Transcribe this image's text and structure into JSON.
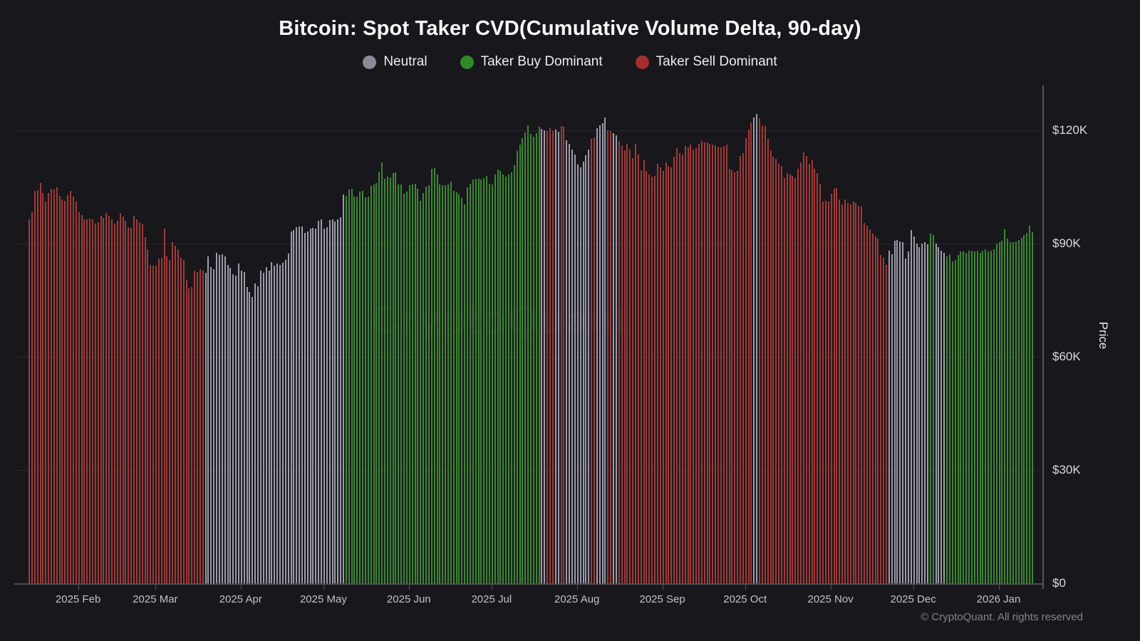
{
  "watermark": "CryptoQuant",
  "copyright": "© CryptoQuant. All rights reserved",
  "legend": [
    {
      "label": "Neutral",
      "code": "n",
      "dot_color": "#8c8c97"
    },
    {
      "label": "Taker Buy Dominant",
      "code": "g",
      "dot_color": "#2f8a28"
    },
    {
      "label": "Taker Sell Dominant",
      "code": "r",
      "dot_color": "#a62d2f"
    }
  ],
  "colors": {
    "background": "#17171c",
    "bar_red": "#a33a35",
    "bar_green": "#3a8a2e",
    "bar_neutral": "#9d9cab",
    "grid": "rgba(255,255,255,0.07)",
    "axis_line": "#55555c",
    "y_label_text": "#dcdcdf",
    "x_label_text": "#c2c2c8"
  },
  "chart_data": {
    "type": "bar",
    "title": "Bitcoin: Spot Taker CVD(Cumulative Volume Delta, 90-day)",
    "ylabel": "Price",
    "legend_position": "top",
    "grid": true,
    "ylim_usd_k": [
      0,
      131
    ],
    "y_axis": [
      {
        "label": "$120K",
        "value": 120
      },
      {
        "label": "$90K",
        "value": 90
      },
      {
        "label": "$60K",
        "value": 60
      },
      {
        "label": "$30K",
        "value": 30
      },
      {
        "label": "$0",
        "value": 0
      }
    ],
    "x_ticks": [
      {
        "label": "2025 Feb",
        "index": 18
      },
      {
        "label": "2025 Mar",
        "index": 46
      },
      {
        "label": "2025 Apr",
        "index": 77
      },
      {
        "label": "2025 May",
        "index": 107
      },
      {
        "label": "2025 Jun",
        "index": 138
      },
      {
        "label": "2025 Jul",
        "index": 168
      },
      {
        "label": "2025 Aug",
        "index": 199
      },
      {
        "label": "2025 Sep",
        "index": 230
      },
      {
        "label": "2025 Oct",
        "index": 260
      },
      {
        "label": "2025 Nov",
        "index": 291
      },
      {
        "label": "2025 Dec",
        "index": 321
      },
      {
        "label": "2026 Jan",
        "index": 352
      }
    ],
    "code_legend": {
      "r": "Taker Sell Dominant",
      "n": "Neutral",
      "g": "Taker Buy Dominant"
    },
    "series": {
      "name": "BTC daily price colored by spot taker CVD dominance",
      "prices_usd_k": [
        96.4,
        98.3,
        104.0,
        104.2,
        106.0,
        103.5,
        101.1,
        103.5,
        104.5,
        104.3,
        104.9,
        102.6,
        101.8,
        101.3,
        102.9,
        104.0,
        102.5,
        101.1,
        98.3,
        97.5,
        96.4,
        96.4,
        96.6,
        96.4,
        95.3,
        95.7,
        97.3,
        96.8,
        98.1,
        97.4,
        96.4,
        95.3,
        96.0,
        98.1,
        97.2,
        96.0,
        94.4,
        94.2,
        97.3,
        96.4,
        95.7,
        95.1,
        91.7,
        88.5,
        84.3,
        84.2,
        84.2,
        86.0,
        86.2,
        94.0,
        86.6,
        85.7,
        90.4,
        89.4,
        88.5,
        86.2,
        85.7,
        80.4,
        78.1,
        78.5,
        82.9,
        82.4,
        83.3,
        82.8,
        82.2,
        86.6,
        83.8,
        83.3,
        87.5,
        86.9,
        87.2,
        86.6,
        84.3,
        83.5,
        81.9,
        81.5,
        84.7,
        82.8,
        82.4,
        78.5,
        77.2,
        75.9,
        79.4,
        78.7,
        82.8,
        82.2,
        83.8,
        82.8,
        85.1,
        84.2,
        84.7,
        84.3,
        84.9,
        85.6,
        87.4,
        93.3,
        93.5,
        94.4,
        94.6,
        94.5,
        92.9,
        93.2,
        93.9,
        94.2,
        94.0,
        96.1,
        96.5,
        94.0,
        94.4,
        96.2,
        96.5,
        95.8,
        96.4,
        97.0,
        103.0,
        102.7,
        104.3,
        104.5,
        102.5,
        102.4,
        103.8,
        103.9,
        102.3,
        102.4,
        105.2,
        105.7,
        106.0,
        109.1,
        111.5,
        107.2,
        107.8,
        107.5,
        108.6,
        108.8,
        105.6,
        105.7,
        103.3,
        103.8,
        105.4,
        105.6,
        105.8,
        104.5,
        101.4,
        103.5,
        105.1,
        105.5,
        109.8,
        110.0,
        108.3,
        105.6,
        105.5,
        105.4,
        105.6,
        106.4,
        103.9,
        103.6,
        103.0,
        102.1,
        100.4,
        105.0,
        105.8,
        107.0,
        107.2,
        107.1,
        107.0,
        107.4,
        108.0,
        105.9,
        105.6,
        108.3,
        109.6,
        109.3,
        108.3,
        107.7,
        108.4,
        108.8,
        110.8,
        114.5,
        116.2,
        118.0,
        119.5,
        121.3,
        119.0,
        118.4,
        119.3,
        120.9,
        120.3,
        120.0,
        119.9,
        120.5,
        119.8,
        120.2,
        119.6,
        121.2,
        120.9,
        117.3,
        116.4,
        114.9,
        113.6,
        110.9,
        110.2,
        111.8,
        113.4,
        114.9,
        117.8,
        118.1,
        120.6,
        121.4,
        121.9,
        123.4,
        120.1,
        119.8,
        119.2,
        118.7,
        117.2,
        116.1,
        114.8,
        116.5,
        114.9,
        112.7,
        116.5,
        113.6,
        109.5,
        112.1,
        109.2,
        108.3,
        107.7,
        108.0,
        111.1,
        110.2,
        109.2,
        111.5,
        110.5,
        110.2,
        113.0,
        115.2,
        113.9,
        113.6,
        115.8,
        115.5,
        116.2,
        114.9,
        115.2,
        116.5,
        117.1,
        116.8,
        116.8,
        116.5,
        116.3,
        116.0,
        115.7,
        115.4,
        115.8,
        116.2,
        109.9,
        109.5,
        108.9,
        109.2,
        113.3,
        113.9,
        118.0,
        120.2,
        122.1,
        123.4,
        124.4,
        123.2,
        121.3,
        121.2,
        117.7,
        114.7,
        113.0,
        112.4,
        111.1,
        110.5,
        107.4,
        108.6,
        108.3,
        108.0,
        107.4,
        109.9,
        111.5,
        114.1,
        113.3,
        111.2,
        112.1,
        109.9,
        108.6,
        105.8,
        101.1,
        101.4,
        101.1,
        103.3,
        104.5,
        104.8,
        101.7,
        100.4,
        101.7,
        100.7,
        100.4,
        101.1,
        100.7,
        100.1,
        99.8,
        95.4,
        94.8,
        93.8,
        92.6,
        91.9,
        91.3,
        86.9,
        86.3,
        84.4,
        88.2,
        87.2,
        90.7,
        91.0,
        90.5,
        90.4,
        86.0,
        87.9,
        93.5,
        91.9,
        90.1,
        89.1,
        90.1,
        90.4,
        89.8,
        92.6,
        92.3,
        90.1,
        89.1,
        88.2,
        87.5,
        86.6,
        87.2,
        85.3,
        85.7,
        86.9,
        87.9,
        88.0,
        87.5,
        88.2,
        88.2,
        87.9,
        88.2,
        87.5,
        88.2,
        88.5,
        87.9,
        88.2,
        88.5,
        90.1,
        90.4,
        90.7,
        93.8,
        91.3,
        90.4,
        90.3,
        90.5,
        91.0,
        91.5,
        92.2,
        92.8,
        94.7,
        93.0
      ],
      "dominance_runs": [
        [
          "r",
          64
        ],
        [
          "n",
          51
        ],
        [
          "g",
          71
        ],
        [
          "n",
          2
        ],
        [
          "r",
          3
        ],
        [
          "n",
          2
        ],
        [
          "r",
          2
        ],
        [
          "n",
          9
        ],
        [
          "r",
          2
        ],
        [
          "n",
          4
        ],
        [
          "r",
          2
        ],
        [
          "n",
          2
        ],
        [
          "r",
          49
        ],
        [
          "n",
          2
        ],
        [
          "r",
          47
        ],
        [
          "n",
          15
        ],
        [
          "g",
          2
        ],
        [
          "n",
          4
        ],
        [
          "g",
          32
        ]
      ]
    }
  }
}
